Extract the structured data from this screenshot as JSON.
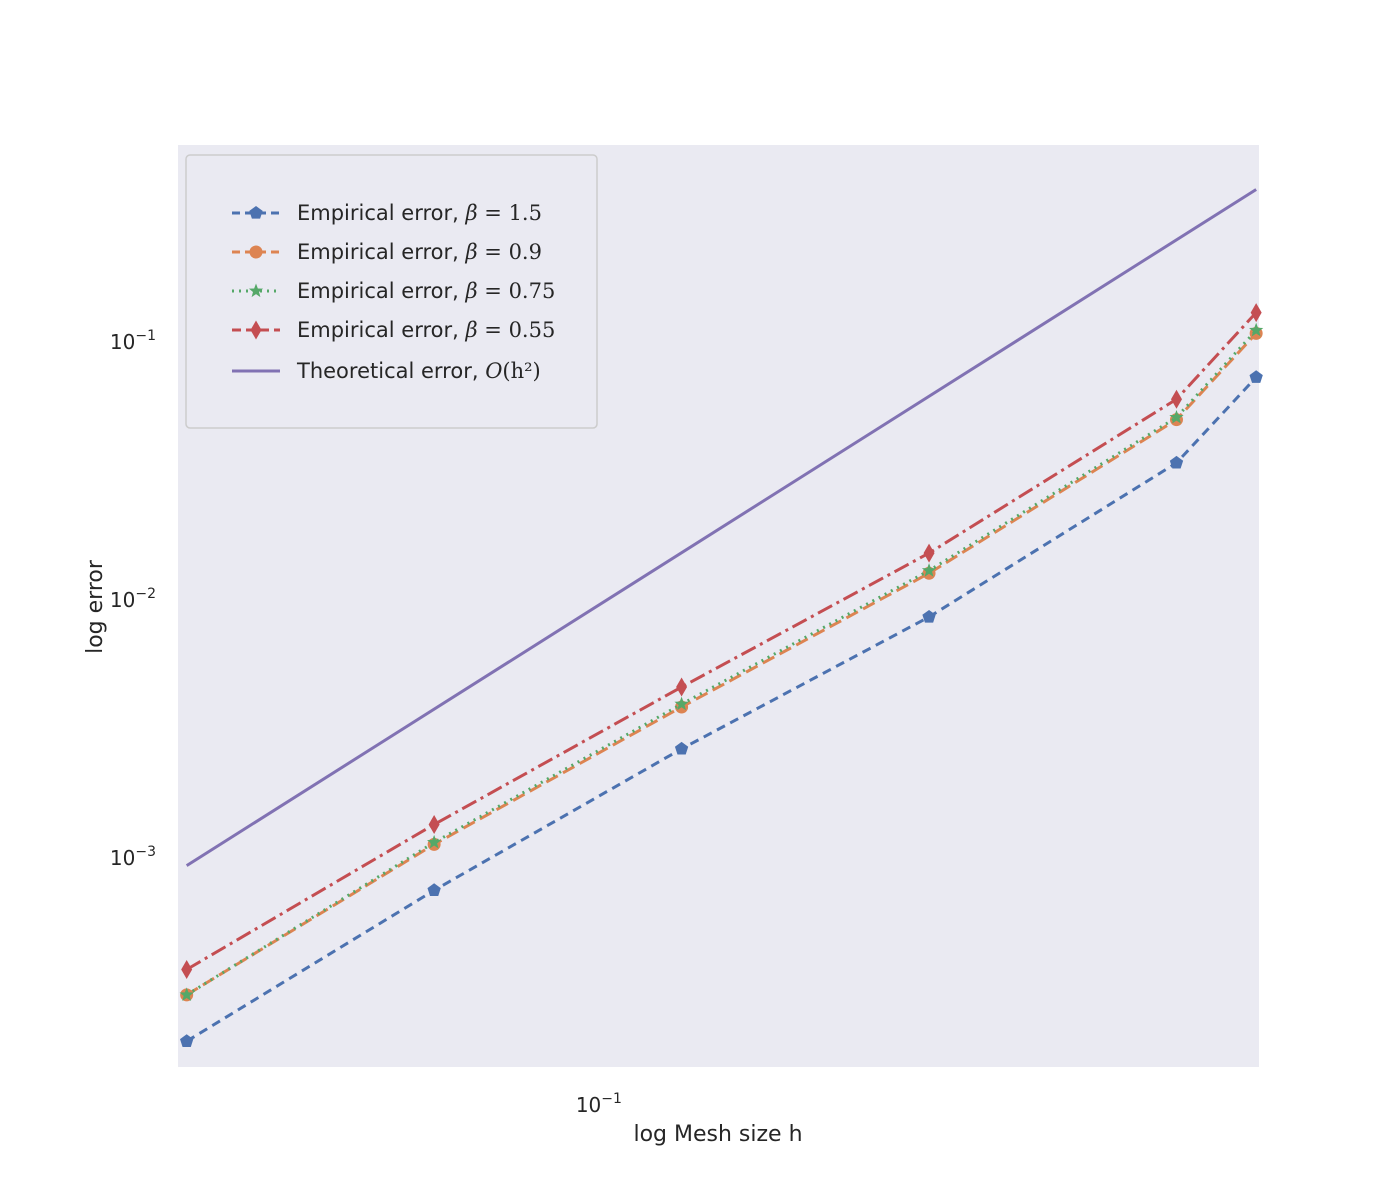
{
  "chart_data": {
    "type": "line",
    "xscale": "log",
    "yscale": "log",
    "xlim": [
      0.0305,
      0.63
    ],
    "ylim": [
      0.000155,
      0.58
    ],
    "xlabel": "log Mesh size h",
    "ylabel": "log error",
    "grid": false,
    "legend": "upper-left",
    "background": "#eaeaf2",
    "x_ticks": [
      {
        "value": 0.1,
        "base": "10",
        "exp": "−1"
      }
    ],
    "y_ticks": [
      {
        "value": 0.001,
        "base": "10",
        "exp": "−3"
      },
      {
        "value": 0.01,
        "base": "10",
        "exp": "−2"
      },
      {
        "value": 0.1,
        "base": "10",
        "exp": "−1"
      }
    ],
    "x": [
      0.03125,
      0.0625,
      0.125,
      0.25,
      0.5,
      0.625
    ],
    "series": [
      {
        "name_text": "Empirical error, ",
        "name_math": "β",
        "name_rest": " = 1.5",
        "color": "#4c72b0",
        "dash": "9,6",
        "marker": "pentagon",
        "values": [
          0.000195,
          0.00075,
          0.00265,
          0.0086,
          0.034,
          0.073
        ]
      },
      {
        "name_text": "Empirical error, ",
        "name_math": "β",
        "name_rest": " = 0.9",
        "color": "#dd8452",
        "dash": "13,6",
        "marker": "circle",
        "values": [
          0.000295,
          0.00113,
          0.00385,
          0.0127,
          0.05,
          0.108
        ]
      },
      {
        "name_text": "Empirical error, ",
        "name_math": "β",
        "name_rest": " = 0.75",
        "color": "#55a868",
        "dash": "2,5",
        "marker": "star",
        "values": [
          0.000295,
          0.00115,
          0.00395,
          0.013,
          0.051,
          0.111
        ]
      },
      {
        "name_text": "Empirical error, ",
        "name_math": "β",
        "name_rest": " = 0.55",
        "color": "#c44e52",
        "dash": "16,5,3,5",
        "marker": "diamond",
        "values": [
          0.00037,
          0.00135,
          0.0046,
          0.0152,
          0.06,
          0.13
        ]
      },
      {
        "name_text": "Theoretical error, ",
        "name_math": "O",
        "name_rest": "(h²)",
        "color": "#8172b3",
        "dash": "",
        "marker": "none",
        "values": [
          0.000935,
          null,
          null,
          null,
          null,
          0.39
        ]
      }
    ]
  }
}
